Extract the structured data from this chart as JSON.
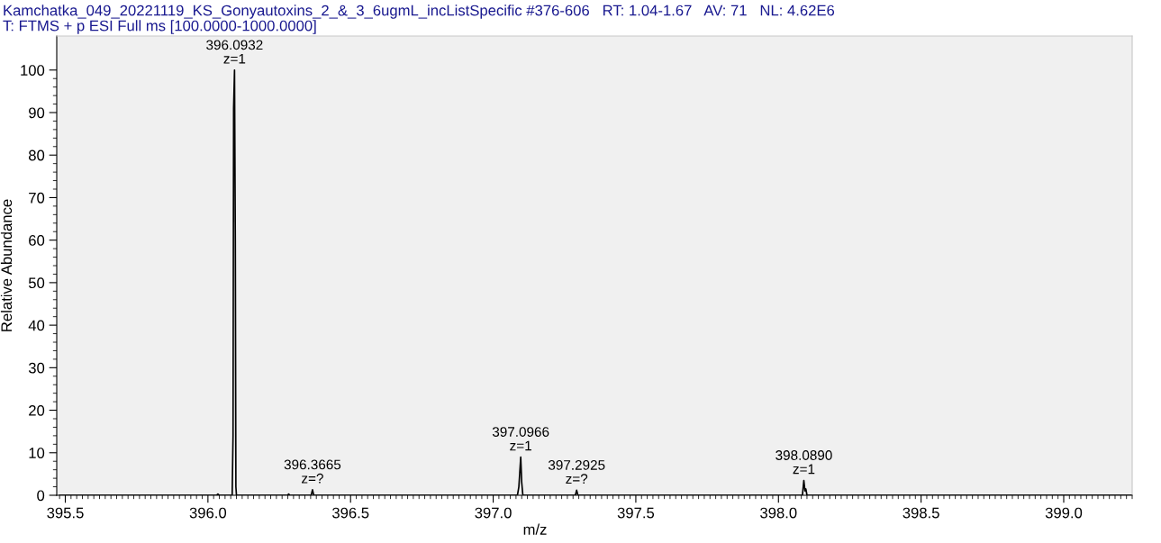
{
  "chart_data": {
    "type": "line",
    "title": "Kamchatka_049_20221119_KS_Gonyautoxins_2_&_3_6ugmL_incListSpecific #376-606   RT: 1.04-1.67   AV: 71   NL: 4.62E6",
    "subtitle": "T: FTMS + p ESI Full ms [100.0000-1000.0000]",
    "xlabel": "m/z",
    "ylabel": "Relative Abundance",
    "series": [
      {
        "color": "#000000",
        "x": [
          395.48,
          396.03,
          396.035,
          396.04,
          396.085,
          396.088,
          396.09,
          396.0932,
          396.096,
          396.098,
          396.1,
          396.28,
          396.283,
          396.286,
          396.362,
          396.3665,
          396.371,
          397.085,
          397.09,
          397.0966,
          397.1,
          397.104,
          397.288,
          397.2925,
          397.297,
          398.084,
          398.089,
          398.093,
          398.096,
          398.1,
          399.24
        ],
        "values": [
          0,
          0,
          0.3,
          0,
          0,
          14,
          91,
          100,
          60,
          2,
          0,
          0,
          0.3,
          0,
          0,
          1.3,
          0,
          0,
          2,
          9,
          3,
          0,
          0,
          1.2,
          0,
          0,
          3.5,
          1,
          1.5,
          0,
          0
        ]
      }
    ],
    "annotations": [
      {
        "text": "396.0932\nz=1",
        "x": 396.0932,
        "y": 100
      },
      {
        "text": "396.3665\nz=?",
        "x": 396.3665,
        "y": 1.3
      },
      {
        "text": "397.0966\nz=1",
        "x": 397.0966,
        "y": 9
      },
      {
        "text": "397.2925\nz=?",
        "x": 397.2925,
        "y": 1.2
      },
      {
        "text": "398.0890\nz=1",
        "x": 398.089,
        "y": 3.5
      }
    ],
    "xlim": [
      395.47,
      399.24
    ],
    "ylim": [
      0,
      108
    ],
    "xticks": [
      395.5,
      {
        "value": 396,
        "label": "396.0"
      },
      396.5,
      {
        "value": 397,
        "label": "397.0"
      },
      397.5,
      {
        "value": 398,
        "label": "398.0"
      },
      398.5,
      {
        "value": 399,
        "label": "399.0"
      }
    ],
    "yticks": [
      0,
      10,
      20,
      30,
      40,
      50,
      60,
      70,
      80,
      90,
      100
    ],
    "grid": false,
    "legend": false,
    "marker": "none",
    "line_style": "solid"
  }
}
